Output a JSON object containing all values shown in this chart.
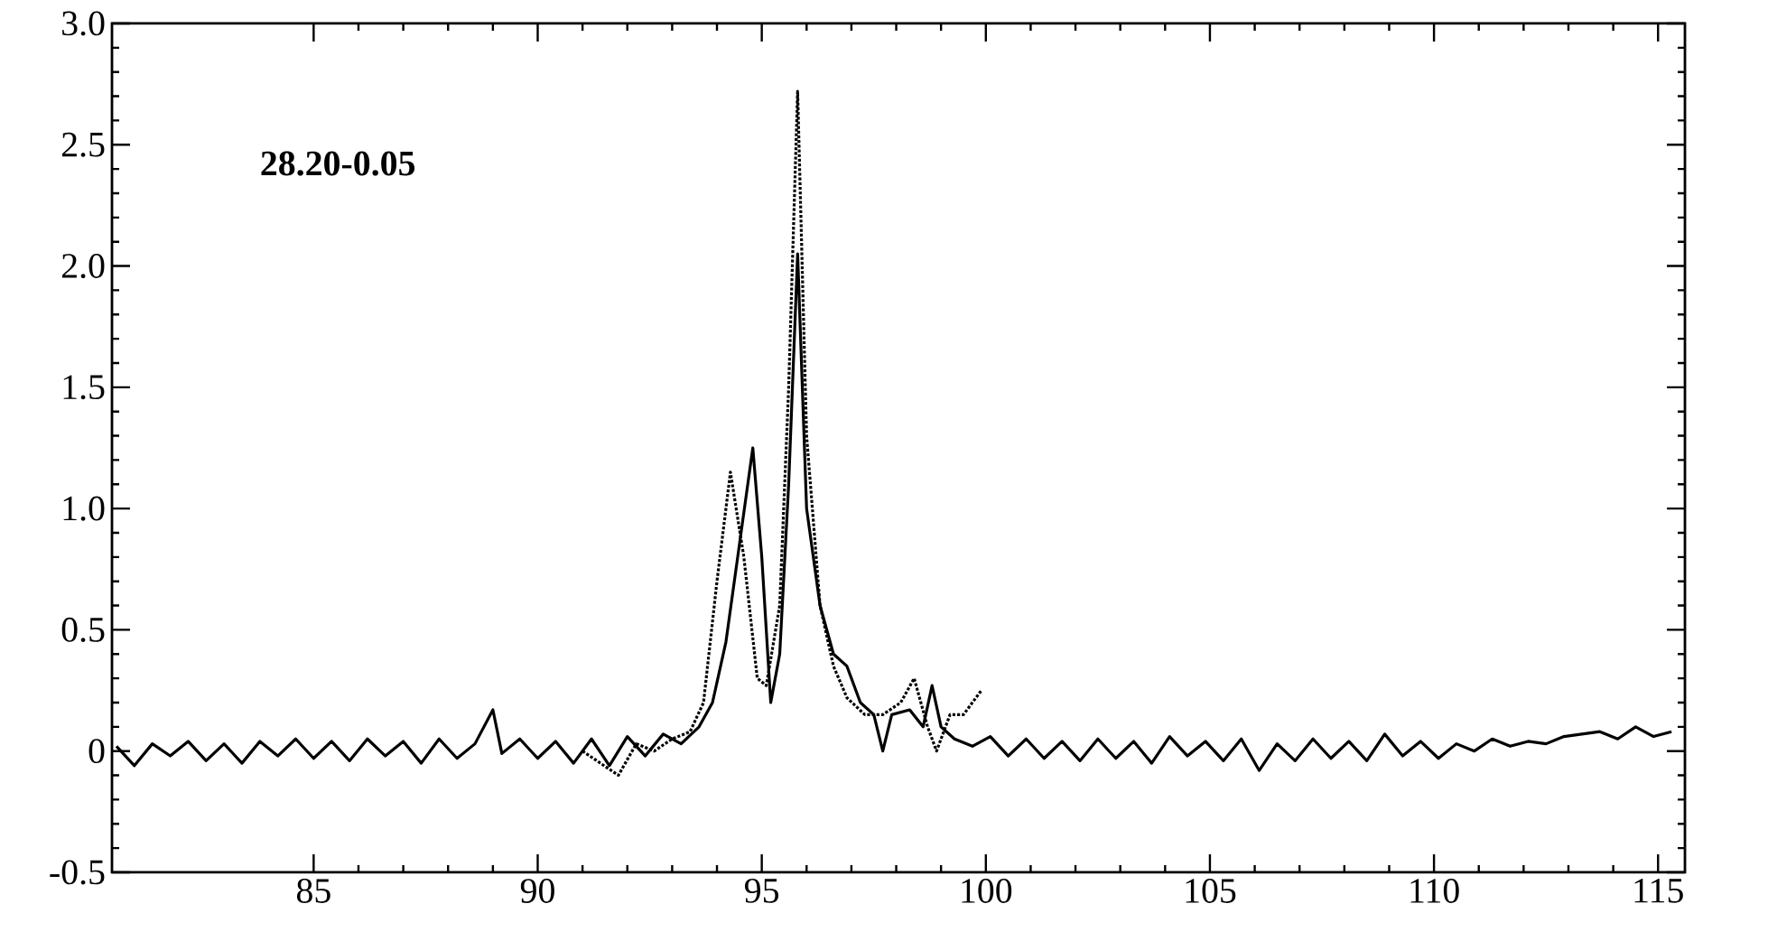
{
  "chart_data": {
    "type": "line",
    "annotations": [
      "28.20-0.05"
    ],
    "xlim": [
      80.5,
      115.6
    ],
    "ylim": [
      -0.5,
      3.0
    ],
    "xticks": [
      85,
      90,
      95,
      100,
      105,
      110,
      115
    ],
    "yticks": [
      {
        "value": -0.5,
        "label": "-0.5"
      },
      0,
      {
        "value": 0.5,
        "label": "0.5"
      },
      {
        "value": 1.0,
        "label": "1.0"
      },
      {
        "value": 1.5,
        "label": "1.5"
      },
      {
        "value": 2.0,
        "label": "2.0"
      },
      {
        "value": 2.5,
        "label": "2.5"
      },
      {
        "value": 3.0,
        "label": "3.0"
      }
    ],
    "marker": "none",
    "series": [
      {
        "color": "#000000",
        "line_style": "solid",
        "x": [
          80.6,
          81.0,
          81.4,
          81.8,
          82.2,
          82.6,
          83.0,
          83.4,
          83.8,
          84.2,
          84.6,
          85.0,
          85.4,
          85.8,
          86.2,
          86.6,
          87.0,
          87.4,
          87.8,
          88.2,
          88.6,
          89.0,
          89.2,
          89.6,
          90.0,
          90.4,
          90.8,
          91.2,
          91.6,
          92.0,
          92.4,
          92.8,
          93.2,
          93.6,
          93.9,
          94.2,
          94.5,
          94.8,
          95.0,
          95.2,
          95.4,
          95.6,
          95.8,
          96.0,
          96.3,
          96.6,
          96.9,
          97.2,
          97.5,
          97.7,
          97.9,
          98.3,
          98.6,
          98.8,
          99.0,
          99.3,
          99.7,
          100.1,
          100.5,
          100.9,
          101.3,
          101.7,
          102.1,
          102.5,
          102.9,
          103.3,
          103.7,
          104.1,
          104.5,
          104.9,
          105.3,
          105.7,
          106.1,
          106.5,
          106.9,
          107.3,
          107.7,
          108.1,
          108.5,
          108.9,
          109.3,
          109.7,
          110.1,
          110.5,
          110.9,
          111.3,
          111.7,
          112.1,
          112.5,
          112.9,
          113.3,
          113.7,
          114.1,
          114.5,
          114.9,
          115.3
        ],
        "values": [
          0.02,
          -0.06,
          0.03,
          -0.02,
          0.04,
          -0.04,
          0.03,
          -0.05,
          0.04,
          -0.02,
          0.05,
          -0.03,
          0.04,
          -0.04,
          0.05,
          -0.02,
          0.04,
          -0.05,
          0.05,
          -0.03,
          0.03,
          0.17,
          -0.01,
          0.05,
          -0.03,
          0.04,
          -0.05,
          0.05,
          -0.06,
          0.06,
          -0.02,
          0.07,
          0.03,
          0.1,
          0.2,
          0.45,
          0.85,
          1.25,
          0.8,
          0.2,
          0.4,
          1.1,
          2.05,
          1.0,
          0.6,
          0.4,
          0.35,
          0.2,
          0.15,
          0.0,
          0.15,
          0.17,
          0.1,
          0.27,
          0.1,
          0.05,
          0.02,
          0.06,
          -0.02,
          0.05,
          -0.03,
          0.04,
          -0.04,
          0.05,
          -0.03,
          0.04,
          -0.05,
          0.06,
          -0.02,
          0.04,
          -0.04,
          0.05,
          -0.08,
          0.03,
          -0.04,
          0.05,
          -0.03,
          0.04,
          -0.04,
          0.07,
          -0.02,
          0.04,
          -0.03,
          0.03,
          0.0,
          0.05,
          0.02,
          0.04,
          0.03,
          0.06,
          0.07,
          0.08,
          0.05,
          0.1,
          0.06,
          0.08
        ]
      },
      {
        "color": "#000000",
        "line_style": "dotted",
        "x": [
          91.0,
          91.4,
          91.8,
          92.2,
          92.6,
          93.0,
          93.4,
          93.7,
          94.0,
          94.3,
          94.6,
          94.9,
          95.1,
          95.4,
          95.6,
          95.8,
          96.0,
          96.3,
          96.6,
          96.9,
          97.3,
          97.7,
          98.1,
          98.4,
          98.7,
          98.9,
          99.2,
          99.5,
          99.9
        ],
        "values": [
          0.0,
          -0.05,
          -0.1,
          0.03,
          0.0,
          0.05,
          0.08,
          0.2,
          0.7,
          1.15,
          0.8,
          0.3,
          0.27,
          0.6,
          1.5,
          2.72,
          1.3,
          0.6,
          0.35,
          0.22,
          0.15,
          0.15,
          0.2,
          0.3,
          0.1,
          0.0,
          0.15,
          0.15,
          0.25
        ]
      }
    ]
  }
}
